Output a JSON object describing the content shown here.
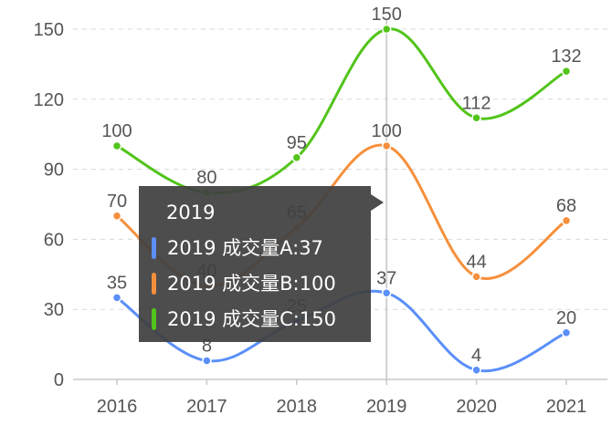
{
  "chart_data": {
    "type": "line",
    "categories": [
      "2016",
      "2017",
      "2018",
      "2019",
      "2020",
      "2021"
    ],
    "ylim": [
      0,
      150
    ],
    "yticks": [
      0,
      30,
      60,
      90,
      120,
      150
    ],
    "grid": true,
    "series": [
      {
        "name": "成交量A",
        "color": "#5b8ff9",
        "values": [
          35,
          8,
          25,
          37,
          4,
          20
        ]
      },
      {
        "name": "成交量B",
        "color": "#f6903d",
        "values": [
          70,
          40,
          65,
          100,
          44,
          68
        ]
      },
      {
        "name": "成交量C",
        "color": "#52c41a",
        "values": [
          100,
          80,
          95,
          150,
          112,
          132
        ]
      }
    ]
  },
  "tooltip": {
    "title": "2019",
    "rows": [
      {
        "text": "2019 成交量A:37",
        "color": "#5b8ff9"
      },
      {
        "text": "2019 成交量B:100",
        "color": "#f6903d"
      },
      {
        "text": "2019 成交量C:150",
        "color": "#52c41a"
      }
    ]
  }
}
